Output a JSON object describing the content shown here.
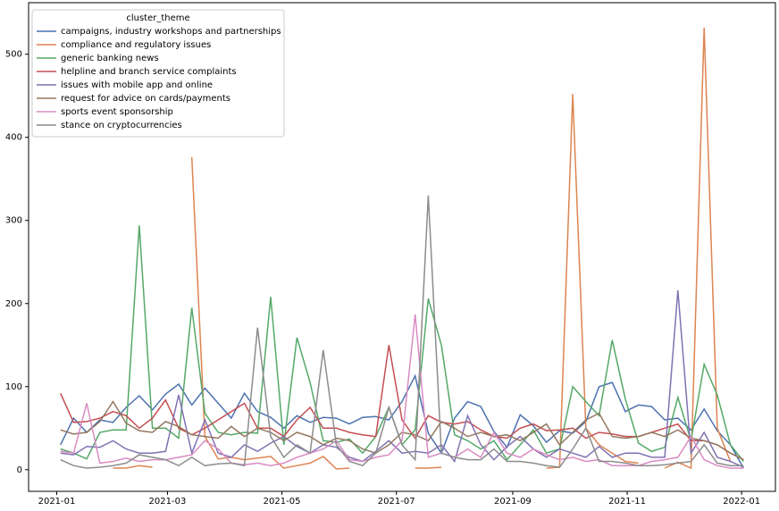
{
  "chart_data": {
    "type": "line",
    "legend_title": "cluster_theme",
    "legend": "upper left",
    "x": [
      "2021-01-03",
      "2021-01-10",
      "2021-01-17",
      "2021-01-24",
      "2021-01-31",
      "2021-02-07",
      "2021-02-14",
      "2021-02-21",
      "2021-02-28",
      "2021-03-07",
      "2021-03-14",
      "2021-03-21",
      "2021-03-28",
      "2021-04-04",
      "2021-04-11",
      "2021-04-18",
      "2021-04-25",
      "2021-05-02",
      "2021-05-09",
      "2021-05-16",
      "2021-05-23",
      "2021-05-30",
      "2021-06-06",
      "2021-06-13",
      "2021-06-20",
      "2021-06-27",
      "2021-07-04",
      "2021-07-11",
      "2021-07-18",
      "2021-07-25",
      "2021-08-01",
      "2021-08-08",
      "2021-08-15",
      "2021-08-22",
      "2021-08-29",
      "2021-09-05",
      "2021-09-12",
      "2021-09-19",
      "2021-09-26",
      "2021-10-03",
      "2021-10-10",
      "2021-10-17",
      "2021-10-24",
      "2021-10-31",
      "2021-11-07",
      "2021-11-14",
      "2021-11-21",
      "2021-11-28",
      "2021-12-05",
      "2021-12-12",
      "2021-12-19",
      "2021-12-26",
      "2022-01-02"
    ],
    "xlim": [
      "2020-12-17",
      "2022-01-19"
    ],
    "xticks": [
      {
        "value": "2021-01-01",
        "label": "2021-01"
      },
      {
        "value": "2021-03-01",
        "label": "2021-03"
      },
      {
        "value": "2021-05-01",
        "label": "2021-05"
      },
      {
        "value": "2021-07-01",
        "label": "2021-07"
      },
      {
        "value": "2021-09-01",
        "label": "2021-09"
      },
      {
        "value": "2021-11-01",
        "label": "2021-11"
      },
      {
        "value": "2022-01-01",
        "label": "2022-01"
      }
    ],
    "ylim": [
      -26,
      562
    ],
    "yticks": [
      0,
      100,
      200,
      300,
      400,
      500
    ],
    "grid": false,
    "series": [
      {
        "name": "campaigns, industry workshops and partnerships",
        "color": "#4c72b0",
        "values": [
          30,
          62,
          45,
          60,
          57,
          75,
          89,
          72,
          91,
          103,
          78,
          98,
          80,
          62,
          92,
          70,
          63,
          50,
          65,
          57,
          63,
          62,
          55,
          63,
          64,
          60,
          82,
          113,
          44,
          20,
          62,
          82,
          76,
          46,
          27,
          66,
          53,
          33,
          47,
          44,
          58,
          100,
          105,
          70,
          78,
          76,
          60,
          62,
          48,
          73,
          47,
          30,
          2
        ]
      },
      {
        "name": "compliance and regulatory issues",
        "color": "#dd8452",
        "values": [
          null,
          null,
          null,
          null,
          2,
          2,
          5,
          3,
          null,
          null,
          376,
          40,
          13,
          15,
          12,
          14,
          16,
          2,
          5,
          8,
          16,
          1,
          2,
          null,
          null,
          null,
          null,
          2,
          2,
          3,
          null,
          null,
          null,
          null,
          null,
          null,
          null,
          2,
          3,
          452,
          50,
          30,
          20,
          10,
          8,
          null,
          2,
          9,
          2,
          532,
          50,
          10,
          null
        ]
      },
      {
        "name": "generic banking news",
        "color": "#55a868",
        "values": [
          25,
          20,
          13,
          45,
          48,
          48,
          294,
          50,
          50,
          38,
          195,
          68,
          45,
          42,
          45,
          44,
          208,
          30,
          159,
          105,
          35,
          33,
          37,
          20,
          40,
          75,
          30,
          48,
          206,
          150,
          42,
          35,
          25,
          35,
          12,
          30,
          48,
          20,
          25,
          100,
          82,
          65,
          156,
          85,
          32,
          22,
          27,
          87,
          35,
          127,
          90,
          30,
          10
        ]
      },
      {
        "name": "helpline and branch service complaints",
        "color": "#c44e52",
        "values": [
          92,
          57,
          58,
          62,
          70,
          65,
          50,
          62,
          84,
          50,
          42,
          50,
          60,
          70,
          80,
          50,
          50,
          40,
          60,
          75,
          50,
          50,
          45,
          42,
          40,
          150,
          60,
          38,
          65,
          57,
          55,
          58,
          48,
          40,
          38,
          50,
          55,
          47,
          48,
          50,
          38,
          45,
          43,
          40,
          40,
          45,
          50,
          55,
          35,
          35,
          30,
          20,
          12
        ]
      },
      {
        "name": "issues with mobile app and online",
        "color": "#8172b3",
        "values": [
          20,
          18,
          28,
          27,
          35,
          25,
          20,
          20,
          22,
          90,
          20,
          60,
          20,
          15,
          30,
          22,
          32,
          40,
          28,
          20,
          30,
          27,
          15,
          10,
          22,
          35,
          20,
          22,
          20,
          30,
          10,
          65,
          30,
          12,
          28,
          40,
          25,
          15,
          25,
          20,
          15,
          28,
          15,
          20,
          20,
          15,
          15,
          216,
          20,
          45,
          15,
          10,
          3
        ]
      },
      {
        "name": "request for advice on cards/payments",
        "color": "#937860",
        "values": [
          48,
          43,
          45,
          58,
          82,
          56,
          47,
          45,
          58,
          52,
          42,
          40,
          38,
          52,
          40,
          50,
          45,
          35,
          45,
          40,
          30,
          38,
          35,
          25,
          20,
          30,
          45,
          42,
          35,
          58,
          50,
          40,
          45,
          40,
          42,
          35,
          45,
          55,
          30,
          45,
          60,
          68,
          40,
          38,
          40,
          45,
          40,
          48,
          38,
          35,
          30,
          20,
          12
        ]
      },
      {
        "name": "sports event sponsorship",
        "color": "#da8bc3",
        "values": [
          22,
          20,
          80,
          8,
          10,
          14,
          10,
          12,
          12,
          15,
          18,
          35,
          25,
          8,
          6,
          8,
          5,
          8,
          15,
          20,
          25,
          35,
          12,
          10,
          15,
          18,
          35,
          187,
          15,
          20,
          15,
          25,
          15,
          45,
          20,
          15,
          25,
          18,
          12,
          15,
          10,
          12,
          5,
          5,
          5,
          10,
          12,
          15,
          40,
          12,
          5,
          2,
          2
        ]
      },
      {
        "name": "stance on cryptocurrencies",
        "color": "#8c8c8c",
        "values": [
          12,
          5,
          2,
          3,
          5,
          8,
          18,
          15,
          12,
          5,
          15,
          5,
          7,
          8,
          5,
          171,
          40,
          15,
          30,
          20,
          144,
          30,
          10,
          5,
          20,
          75,
          30,
          12,
          330,
          20,
          15,
          12,
          12,
          25,
          10,
          10,
          8,
          5,
          3,
          25,
          50,
          10,
          10,
          8,
          5,
          5,
          6,
          8,
          10,
          30,
          8,
          5,
          5
        ]
      }
    ]
  }
}
